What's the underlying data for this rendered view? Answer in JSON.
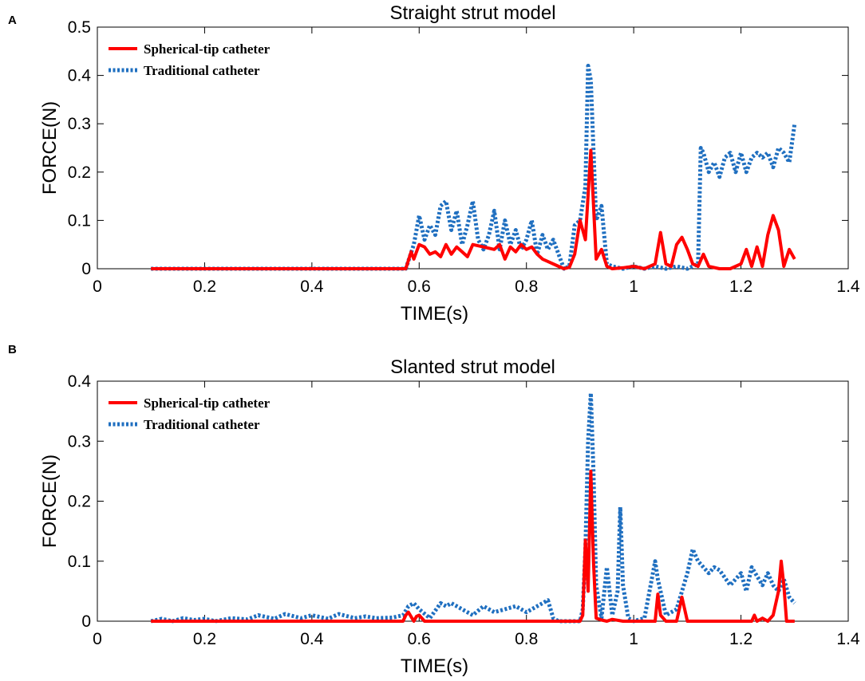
{
  "colors": {
    "spherical": "#ff0000",
    "traditional": "#1f6fc0"
  },
  "chart_data": [
    {
      "type": "line",
      "panel": "A",
      "title": "Straight strut model",
      "xlabel": "TIME(s)",
      "ylabel": "FORCE(N)",
      "xlim": [
        0,
        1.4
      ],
      "ylim": [
        0,
        0.5
      ],
      "xticks": [
        0,
        0.2,
        0.4,
        0.6,
        0.8,
        1,
        1.2,
        1.4
      ],
      "xtick_labels": [
        "0",
        "0.2",
        "0.4",
        "0.6",
        "0.8",
        "1",
        "1.2",
        "1.4"
      ],
      "yticks": [
        0,
        0.1,
        0.2,
        0.3,
        0.4,
        0.5
      ],
      "ytick_labels": [
        "0",
        "0.1",
        "0.2",
        "0.3",
        "0.4",
        "0.5"
      ],
      "legend": [
        "Spherical-tip catheter",
        "Traditional catheter"
      ],
      "legend_position": "top-left",
      "series": [
        {
          "name": "Spherical-tip catheter",
          "style": "solid",
          "color": "#ff0000",
          "x": [
            0.1,
            0.575,
            0.585,
            0.59,
            0.6,
            0.61,
            0.62,
            0.63,
            0.64,
            0.65,
            0.66,
            0.67,
            0.68,
            0.69,
            0.7,
            0.72,
            0.74,
            0.75,
            0.76,
            0.77,
            0.78,
            0.79,
            0.8,
            0.81,
            0.82,
            0.83,
            0.84,
            0.86,
            0.87,
            0.88,
            0.89,
            0.9,
            0.91,
            0.92,
            0.93,
            0.94,
            0.95,
            0.96,
            0.98,
            1.0,
            1.02,
            1.04,
            1.05,
            1.06,
            1.07,
            1.08,
            1.09,
            1.1,
            1.11,
            1.12,
            1.13,
            1.14,
            1.16,
            1.18,
            1.2,
            1.21,
            1.22,
            1.23,
            1.24,
            1.25,
            1.26,
            1.27,
            1.28,
            1.29,
            1.3
          ],
          "y": [
            0,
            0,
            0.035,
            0.02,
            0.05,
            0.045,
            0.03,
            0.035,
            0.025,
            0.05,
            0.03,
            0.045,
            0.035,
            0.025,
            0.05,
            0.045,
            0.04,
            0.05,
            0.02,
            0.045,
            0.035,
            0.05,
            0.04,
            0.045,
            0.03,
            0.02,
            0.015,
            0.005,
            0,
            0.003,
            0.03,
            0.1,
            0.06,
            0.245,
            0.02,
            0.04,
            0.005,
            0,
            0.002,
            0.005,
            0,
            0.01,
            0.075,
            0.01,
            0.005,
            0.05,
            0.065,
            0.04,
            0.01,
            0.005,
            0.03,
            0.005,
            0,
            0,
            0.01,
            0.04,
            0.005,
            0.045,
            0.005,
            0.07,
            0.11,
            0.08,
            0.005,
            0.04,
            0.02
          ]
        },
        {
          "name": "Traditional catheter",
          "style": "dotted",
          "color": "#1f6fc0",
          "x": [
            0.1,
            0.575,
            0.59,
            0.6,
            0.61,
            0.62,
            0.63,
            0.64,
            0.65,
            0.66,
            0.67,
            0.68,
            0.69,
            0.7,
            0.71,
            0.72,
            0.73,
            0.74,
            0.75,
            0.76,
            0.77,
            0.78,
            0.79,
            0.8,
            0.81,
            0.82,
            0.83,
            0.84,
            0.85,
            0.86,
            0.87,
            0.88,
            0.89,
            0.9,
            0.91,
            0.915,
            0.92,
            0.93,
            0.94,
            0.95,
            0.96,
            0.98,
            1.0,
            1.02,
            1.04,
            1.06,
            1.08,
            1.1,
            1.12,
            1.125,
            1.13,
            1.14,
            1.15,
            1.16,
            1.17,
            1.18,
            1.19,
            1.2,
            1.21,
            1.22,
            1.23,
            1.24,
            1.25,
            1.26,
            1.27,
            1.28,
            1.29,
            1.3
          ],
          "y": [
            0,
            0,
            0.05,
            0.11,
            0.06,
            0.09,
            0.07,
            0.13,
            0.14,
            0.08,
            0.12,
            0.05,
            0.09,
            0.14,
            0.06,
            0.04,
            0.07,
            0.12,
            0.04,
            0.1,
            0.05,
            0.08,
            0.04,
            0.06,
            0.1,
            0.03,
            0.07,
            0.04,
            0.06,
            0.03,
            0,
            0.005,
            0.09,
            0.1,
            0.17,
            0.42,
            0.39,
            0.1,
            0.13,
            0.01,
            0.005,
            0,
            0.005,
            0,
            0.005,
            0,
            0.005,
            0,
            0.01,
            0.25,
            0.24,
            0.2,
            0.22,
            0.19,
            0.23,
            0.24,
            0.2,
            0.24,
            0.2,
            0.23,
            0.24,
            0.23,
            0.24,
            0.21,
            0.25,
            0.24,
            0.22,
            0.3
          ]
        }
      ]
    },
    {
      "type": "line",
      "panel": "B",
      "title": "Slanted strut model",
      "xlabel": "TIME(s)",
      "ylabel": "FORCE(N)",
      "xlim": [
        0,
        1.4
      ],
      "ylim": [
        0,
        0.4
      ],
      "xticks": [
        0,
        0.2,
        0.4,
        0.6,
        0.8,
        1,
        1.2,
        1.4
      ],
      "xtick_labels": [
        "0",
        "0.2",
        "0.4",
        "0.6",
        "0.8",
        "1",
        "1.2",
        "1.4"
      ],
      "yticks": [
        0,
        0.1,
        0.2,
        0.3,
        0.4
      ],
      "ytick_labels": [
        "0",
        "0.1",
        "0.2",
        "0.3",
        "0.4"
      ],
      "legend": [
        "Spherical-tip catheter",
        "Traditional catheter"
      ],
      "legend_position": "top-left",
      "series": [
        {
          "name": "Spherical-tip catheter",
          "style": "solid",
          "color": "#ff0000",
          "x": [
            0.1,
            0.57,
            0.575,
            0.58,
            0.59,
            0.595,
            0.6,
            0.61,
            0.9,
            0.905,
            0.91,
            0.915,
            0.92,
            0.925,
            0.93,
            0.94,
            0.95,
            0.96,
            0.98,
            1.0,
            1.04,
            1.045,
            1.05,
            1.06,
            1.08,
            1.09,
            1.1,
            1.2,
            1.22,
            1.225,
            1.23,
            1.24,
            1.25,
            1.26,
            1.27,
            1.275,
            1.28,
            1.285,
            1.29,
            1.3
          ],
          "y": [
            0,
            0,
            0.01,
            0.015,
            0,
            0.008,
            0.01,
            0,
            0,
            0.01,
            0.135,
            0.05,
            0.25,
            0.1,
            0.005,
            0.002,
            0,
            0.003,
            0,
            0,
            0,
            0.045,
            0.01,
            0,
            0,
            0.04,
            0,
            0,
            0,
            0.01,
            0,
            0.005,
            0,
            0.01,
            0.05,
            0.1,
            0.06,
            0,
            0,
            0
          ]
        },
        {
          "name": "Traditional catheter",
          "style": "dotted",
          "color": "#1f6fc0",
          "x": [
            0.1,
            0.12,
            0.14,
            0.16,
            0.18,
            0.2,
            0.22,
            0.25,
            0.28,
            0.3,
            0.33,
            0.35,
            0.38,
            0.4,
            0.43,
            0.45,
            0.48,
            0.5,
            0.52,
            0.55,
            0.57,
            0.58,
            0.59,
            0.6,
            0.62,
            0.64,
            0.65,
            0.66,
            0.68,
            0.7,
            0.72,
            0.74,
            0.76,
            0.78,
            0.8,
            0.82,
            0.84,
            0.85,
            0.86,
            0.88,
            0.9,
            0.905,
            0.91,
            0.915,
            0.92,
            0.925,
            0.93,
            0.94,
            0.95,
            0.96,
            0.97,
            0.975,
            0.98,
            0.99,
            1.0,
            1.02,
            1.04,
            1.045,
            1.06,
            1.08,
            1.1,
            1.11,
            1.12,
            1.14,
            1.15,
            1.16,
            1.18,
            1.2,
            1.21,
            1.22,
            1.24,
            1.25,
            1.26,
            1.27,
            1.28,
            1.29,
            1.3
          ],
          "y": [
            0,
            0.004,
            0,
            0.005,
            0.002,
            0.004,
            0,
            0.005,
            0.003,
            0.01,
            0.004,
            0.012,
            0.005,
            0.01,
            0.004,
            0.012,
            0.005,
            0.008,
            0.005,
            0.006,
            0.01,
            0.025,
            0.03,
            0.02,
            0.005,
            0.03,
            0.025,
            0.03,
            0.02,
            0.01,
            0.025,
            0.015,
            0.02,
            0.025,
            0.015,
            0.025,
            0.035,
            0.005,
            0,
            0,
            0,
            0.02,
            0.12,
            0.3,
            0.38,
            0.25,
            0.06,
            0.005,
            0.09,
            0.01,
            0.05,
            0.19,
            0.06,
            0.005,
            0,
            0.005,
            0.1,
            0.07,
            0.01,
            0.02,
            0.08,
            0.12,
            0.1,
            0.08,
            0.09,
            0.085,
            0.06,
            0.08,
            0.05,
            0.09,
            0.06,
            0.08,
            0.06,
            0.05,
            0.07,
            0.04,
            0.03
          ]
        }
      ]
    }
  ]
}
